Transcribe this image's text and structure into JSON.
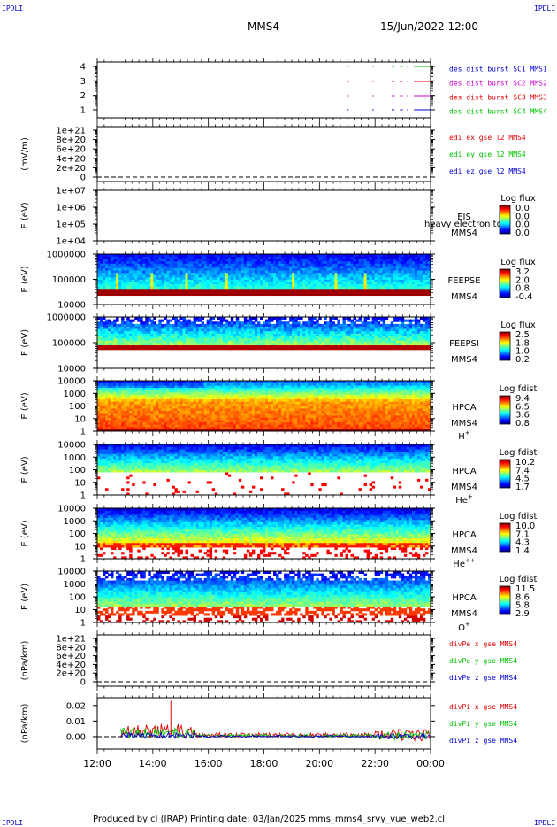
{
  "header": {
    "left_corner": "IPDLI",
    "right_corner": "IPDLI",
    "spacecraft": "MMS4",
    "datetime": "15/Jun/2022 12:00"
  },
  "footer": {
    "text": "Produced by cl (IRAP)   Printing date: 03/Jan/2025   mms_mms4_srvy_vue_web2.cl",
    "left_corner": "IPDLI",
    "right_corner": "IPDLI"
  },
  "x_axis": {
    "tick_labels": [
      "12:00",
      "14:00",
      "16:00",
      "18:00",
      "20:00",
      "22:00",
      "00:00"
    ]
  },
  "colors": {
    "red": "#e00000",
    "green": "#00c000",
    "magenta": "#d000d0",
    "blue": "#0000d0",
    "grey": "#808080"
  },
  "chart_data": [
    {
      "id": "burst",
      "type": "line",
      "y_ticks": [
        "4",
        "3",
        "2",
        "1"
      ],
      "legend": [
        {
          "label": "des dist burst SC1 MMS1",
          "color": "#0000d0"
        },
        {
          "label": "des dist burst SC2 MMS2",
          "color": "#d000d0"
        },
        {
          "label": "des dist burst SC3 MMS3",
          "color": "#e00000"
        },
        {
          "label": "des dist burst SC4 MMS4",
          "color": "#00c000"
        }
      ],
      "segments_hours": [
        [
          21.0,
          21.05
        ],
        [
          21.9,
          21.95
        ],
        [
          22.6,
          22.7
        ],
        [
          22.9,
          23.0
        ],
        [
          23.15,
          23.2
        ],
        [
          23.4,
          24.0
        ]
      ]
    },
    {
      "id": "edi",
      "type": "line",
      "ylabel": "(mV/m)",
      "y_ticks": [
        "1e+21",
        "8e+20",
        "6e+20",
        "4e+20",
        "2e+20",
        "0"
      ],
      "legend": [
        {
          "label": "edi ex gse l2 MMS4",
          "color": "#e00000"
        },
        {
          "label": "edi ey gse l2 MMS4",
          "color": "#00c000"
        },
        {
          "label": "edi ez gse l2 MMS4",
          "color": "#0000d0"
        }
      ]
    },
    {
      "id": "eis",
      "type": "heatmap",
      "ylabel": "E (eV)",
      "y_ticks": [
        "1e+07",
        "1e+06",
        "1e+05",
        "1e+04"
      ],
      "side_labels": [
        "EIS",
        "MMS4"
      ],
      "extra_label": "heavy electron to",
      "colorbar_title": "Log flux",
      "colorbar_ticks": [
        "0.0",
        "0.0",
        "0.0",
        "0.0"
      ]
    },
    {
      "id": "feepse",
      "type": "heatmap",
      "ylabel": "E (eV)",
      "y_ticks": [
        "1000000",
        "100000",
        "10000"
      ],
      "side_labels": [
        "FEEPSE",
        "MMS4"
      ],
      "colorbar_title": "Log flux",
      "colorbar_ticks": [
        "3.2",
        "2.0",
        "0.8",
        "-0.4"
      ]
    },
    {
      "id": "feepsi",
      "type": "heatmap",
      "ylabel": "E (eV)",
      "y_ticks": [
        "1000000",
        "100000",
        "10000"
      ],
      "side_labels": [
        "FEEPSI",
        "MMS4"
      ],
      "colorbar_title": "Log flux",
      "colorbar_ticks": [
        "2.5",
        "1.8",
        "1.0",
        "0.2"
      ]
    },
    {
      "id": "hpca_h",
      "type": "heatmap",
      "ylabel": "E (eV)",
      "y_ticks": [
        "10000",
        "1000",
        "100",
        "10",
        "1"
      ],
      "side_labels": [
        "HPCA",
        "MMS4"
      ],
      "species": "H",
      "species_sup": "+",
      "colorbar_title": "Log fdist",
      "colorbar_ticks": [
        "9.4",
        "6.5",
        "3.6",
        "0.8"
      ]
    },
    {
      "id": "hpca_he",
      "type": "heatmap",
      "ylabel": "E (eV)",
      "y_ticks": [
        "10000",
        "1000",
        "100",
        "10",
        "1"
      ],
      "side_labels": [
        "HPCA",
        "MMS4"
      ],
      "species": "He",
      "species_sup": "+",
      "colorbar_title": "Log fdist",
      "colorbar_ticks": [
        "10.2",
        "7.4",
        "4.5",
        "1.7"
      ]
    },
    {
      "id": "hpca_hepp",
      "type": "heatmap",
      "ylabel": "E (eV)",
      "y_ticks": [
        "10000",
        "1000",
        "100",
        "10",
        "1"
      ],
      "side_labels": [
        "HPCA",
        "MMS4"
      ],
      "species": "He",
      "species_sup": "++",
      "colorbar_title": "Log fdist",
      "colorbar_ticks": [
        "10.0",
        "7.1",
        "4.3",
        "1.4"
      ]
    },
    {
      "id": "hpca_o",
      "type": "heatmap",
      "ylabel": "E (eV)",
      "y_ticks": [
        "10000",
        "1000",
        "100",
        "10",
        "1"
      ],
      "side_labels": [
        "HPCA",
        "MMS4"
      ],
      "species": "O",
      "species_sup": "+",
      "colorbar_title": "Log fdist",
      "colorbar_ticks": [
        "11.5",
        "8.6",
        "5.8",
        "2.9"
      ]
    },
    {
      "id": "divpe",
      "type": "line",
      "ylabel": "(nPa/km)",
      "y_ticks": [
        "1e+21",
        "8e+20",
        "6e+20",
        "4e+20",
        "2e+20",
        "0"
      ],
      "legend": [
        {
          "label": "divPe x gse MMS4",
          "color": "#e00000"
        },
        {
          "label": "divPe y gse MMS4",
          "color": "#00c000"
        },
        {
          "label": "divPe z gse MMS4",
          "color": "#0000d0"
        }
      ]
    },
    {
      "id": "divpi",
      "type": "line",
      "ylabel": "(nPa/km)",
      "y_ticks": [
        "0.02",
        "0.01",
        "0.00"
      ],
      "ylim": [
        -0.008,
        0.025
      ],
      "legend": [
        {
          "label": "divPi x gse MMS4",
          "color": "#e00000"
        },
        {
          "label": "divPi y gse MMS4",
          "color": "#00c000"
        },
        {
          "label": "divPi z gse MMS4",
          "color": "#0000d0"
        }
      ],
      "data_start_hour": 12.85,
      "spike": {
        "hour": 14.65,
        "value": 0.023
      }
    }
  ]
}
